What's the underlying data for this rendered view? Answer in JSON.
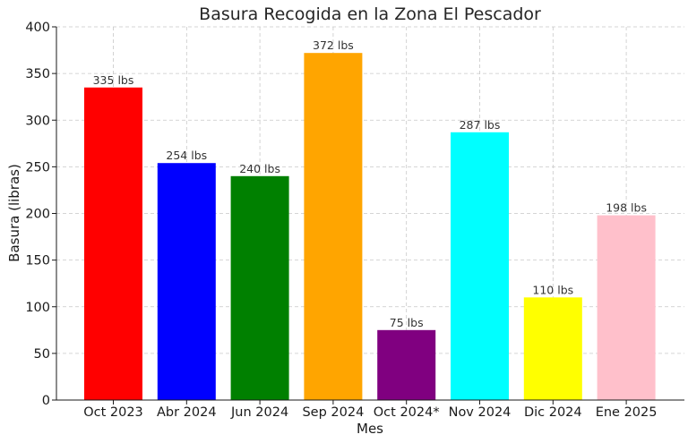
{
  "chart_data": {
    "type": "bar",
    "title": "Basura Recogida en la Zona El Pescador",
    "xlabel": "Mes",
    "ylabel": "Basura (libras)",
    "categories": [
      "Oct 2023",
      "Abr 2024",
      "Jun 2024",
      "Sep 2024",
      "Oct 2024*",
      "Nov 2024",
      "Dic 2024",
      "Ene 2025"
    ],
    "values": [
      335,
      254,
      240,
      372,
      75,
      287,
      110,
      198
    ],
    "data_labels": [
      "335 lbs",
      "254 lbs",
      "240 lbs",
      "372 lbs",
      "75 lbs",
      "287 lbs",
      "110 lbs",
      "198 lbs"
    ],
    "colors": [
      "#ff0000",
      "#0000ff",
      "#008000",
      "#ffa500",
      "#800080",
      "#00ffff",
      "#ffff00",
      "#ffc0cb"
    ],
    "ylim": [
      0,
      400
    ],
    "yticks": [
      0,
      50,
      100,
      150,
      200,
      250,
      300,
      350,
      400
    ],
    "grid": true
  }
}
